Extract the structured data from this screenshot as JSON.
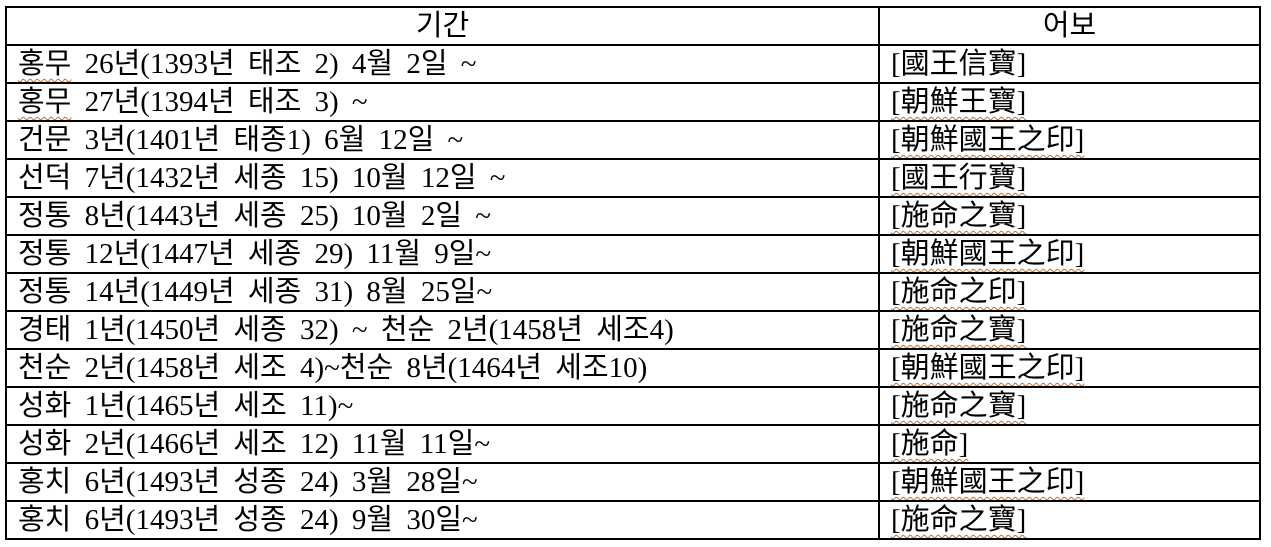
{
  "document": {
    "table": {
      "headers": {
        "period": "기간",
        "seal": "어보"
      },
      "rows": [
        {
          "period": "홍무 26년(1393년 태조 2) 4월 2일 ~",
          "flagged": "홍무",
          "seal": "[國王信寶]",
          "seal_flagged": false
        },
        {
          "period": "홍무 27년(1394년 태조 3) ~",
          "flagged": "홍무",
          "seal": "[朝鮮王寶]",
          "seal_flagged": true
        },
        {
          "period": "건문 3년(1401년 태종1) 6월 12일 ~",
          "flagged": null,
          "seal": "[朝鮮國王之印]",
          "seal_flagged": true
        },
        {
          "period": "선덕 7년(1432년 세종 15) 10월 12일 ~",
          "flagged": null,
          "seal": "[國王行寶]",
          "seal_flagged": true
        },
        {
          "period": "정통 8년(1443년 세종 25) 10월 2일 ~",
          "flagged": null,
          "seal": "[施命之寶]",
          "seal_flagged": true
        },
        {
          "period": "정통 12년(1447년 세종 29) 11월 9일~",
          "flagged": null,
          "seal": "[朝鮮國王之印]",
          "seal_flagged": true
        },
        {
          "period": "정통 14년(1449년 세종 31) 8월 25일~",
          "flagged": null,
          "seal": "[施命之印]",
          "seal_flagged": true
        },
        {
          "period": "경태 1년(1450년 세종 32) ~ 천순 2년(1458년 세조4)",
          "flagged": null,
          "seal": "[施命之寶]",
          "seal_flagged": true
        },
        {
          "period": "천순 2년(1458년 세조 4)~천순 8년(1464년 세조10)",
          "flagged": null,
          "seal": "[朝鮮國王之印]",
          "seal_flagged": true
        },
        {
          "period": "성화 1년(1465년 세조 11)~",
          "flagged": null,
          "seal": "[施命之寶]",
          "seal_flagged": true
        },
        {
          "period": "성화 2년(1466년 세조 12) 11월 11일~",
          "flagged": null,
          "seal": "[施命]",
          "seal_flagged": true
        },
        {
          "period": "홍치 6년(1493년 성종 24) 3월 28일~",
          "flagged": null,
          "seal": "[朝鮮國王之印]",
          "seal_flagged": true
        },
        {
          "period": "홍치 6년(1493년 성종 24) 9월 30일~",
          "flagged": null,
          "seal": "[施命之寶]",
          "seal_flagged": true
        }
      ]
    },
    "colors": {
      "border": "#000000",
      "text": "#000000",
      "background": "#ffffff",
      "spellcheck_underline": "#d2691e"
    }
  }
}
